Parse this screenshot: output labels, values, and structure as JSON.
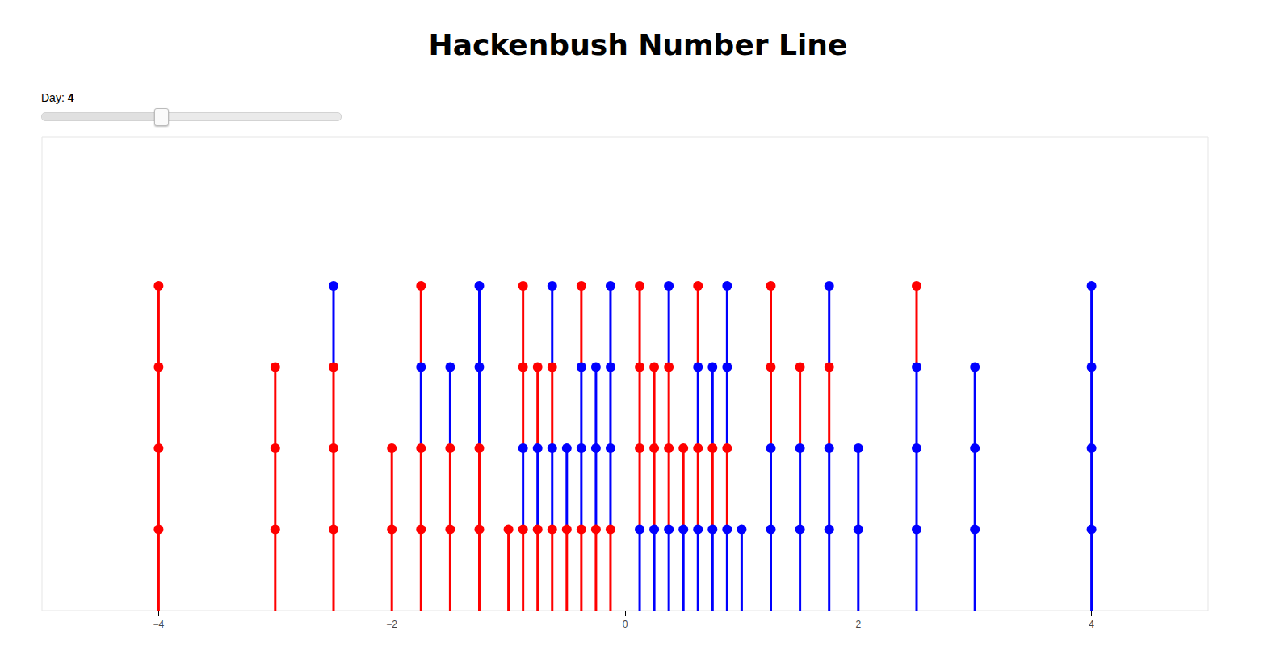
{
  "chart_data": {
    "type": "hackenbush",
    "title": "Hackenbush Number Line",
    "slider": {
      "label": "Day:",
      "value": 4,
      "min": 0,
      "max": 10
    },
    "xlim": [
      -5,
      5
    ],
    "xticks": [
      -4,
      -2,
      0,
      2,
      4
    ],
    "ylim": [
      0,
      5.83
    ],
    "yticks": [],
    "tick_labels": "x",
    "grid": false,
    "stalks": [
      {
        "x": -4,
        "colors": [
          "#ff0000",
          "#ff0000",
          "#ff0000",
          "#ff0000"
        ]
      },
      {
        "x": -3,
        "colors": [
          "#ff0000",
          "#ff0000",
          "#ff0000"
        ]
      },
      {
        "x": -2.5,
        "colors": [
          "#ff0000",
          "#ff0000",
          "#ff0000",
          "#0000ff"
        ]
      },
      {
        "x": -2,
        "colors": [
          "#ff0000",
          "#ff0000"
        ]
      },
      {
        "x": -1.75,
        "colors": [
          "#ff0000",
          "#ff0000",
          "#0000ff",
          "#ff0000"
        ]
      },
      {
        "x": -1.5,
        "colors": [
          "#ff0000",
          "#ff0000",
          "#0000ff"
        ]
      },
      {
        "x": -1.25,
        "colors": [
          "#ff0000",
          "#ff0000",
          "#0000ff",
          "#0000ff"
        ]
      },
      {
        "x": -1,
        "colors": [
          "#ff0000"
        ]
      },
      {
        "x": -0.875,
        "colors": [
          "#ff0000",
          "#0000ff",
          "#ff0000",
          "#ff0000"
        ]
      },
      {
        "x": -0.75,
        "colors": [
          "#ff0000",
          "#0000ff",
          "#ff0000"
        ]
      },
      {
        "x": -0.625,
        "colors": [
          "#ff0000",
          "#0000ff",
          "#ff0000",
          "#0000ff"
        ]
      },
      {
        "x": -0.5,
        "colors": [
          "#ff0000",
          "#0000ff"
        ]
      },
      {
        "x": -0.375,
        "colors": [
          "#ff0000",
          "#0000ff",
          "#0000ff",
          "#ff0000"
        ]
      },
      {
        "x": -0.25,
        "colors": [
          "#ff0000",
          "#0000ff",
          "#0000ff"
        ]
      },
      {
        "x": -0.125,
        "colors": [
          "#ff0000",
          "#0000ff",
          "#0000ff",
          "#0000ff"
        ]
      },
      {
        "x": 0.125,
        "colors": [
          "#0000ff",
          "#ff0000",
          "#ff0000",
          "#ff0000"
        ]
      },
      {
        "x": 0.25,
        "colors": [
          "#0000ff",
          "#ff0000",
          "#ff0000"
        ]
      },
      {
        "x": 0.375,
        "colors": [
          "#0000ff",
          "#ff0000",
          "#ff0000",
          "#0000ff"
        ]
      },
      {
        "x": 0.5,
        "colors": [
          "#0000ff",
          "#ff0000"
        ]
      },
      {
        "x": 0.625,
        "colors": [
          "#0000ff",
          "#ff0000",
          "#0000ff",
          "#ff0000"
        ]
      },
      {
        "x": 0.75,
        "colors": [
          "#0000ff",
          "#ff0000",
          "#0000ff"
        ]
      },
      {
        "x": 0.875,
        "colors": [
          "#0000ff",
          "#ff0000",
          "#0000ff",
          "#0000ff"
        ]
      },
      {
        "x": 1,
        "colors": [
          "#0000ff"
        ]
      },
      {
        "x": 1.25,
        "colors": [
          "#0000ff",
          "#0000ff",
          "#ff0000",
          "#ff0000"
        ]
      },
      {
        "x": 1.5,
        "colors": [
          "#0000ff",
          "#0000ff",
          "#ff0000"
        ]
      },
      {
        "x": 1.75,
        "colors": [
          "#0000ff",
          "#0000ff",
          "#ff0000",
          "#0000ff"
        ]
      },
      {
        "x": 2,
        "colors": [
          "#0000ff",
          "#0000ff"
        ]
      },
      {
        "x": 2.5,
        "colors": [
          "#0000ff",
          "#0000ff",
          "#0000ff",
          "#ff0000"
        ]
      },
      {
        "x": 3,
        "colors": [
          "#0000ff",
          "#0000ff",
          "#0000ff"
        ]
      },
      {
        "x": 4,
        "colors": [
          "#0000ff",
          "#0000ff",
          "#0000ff",
          "#0000ff"
        ]
      }
    ]
  }
}
